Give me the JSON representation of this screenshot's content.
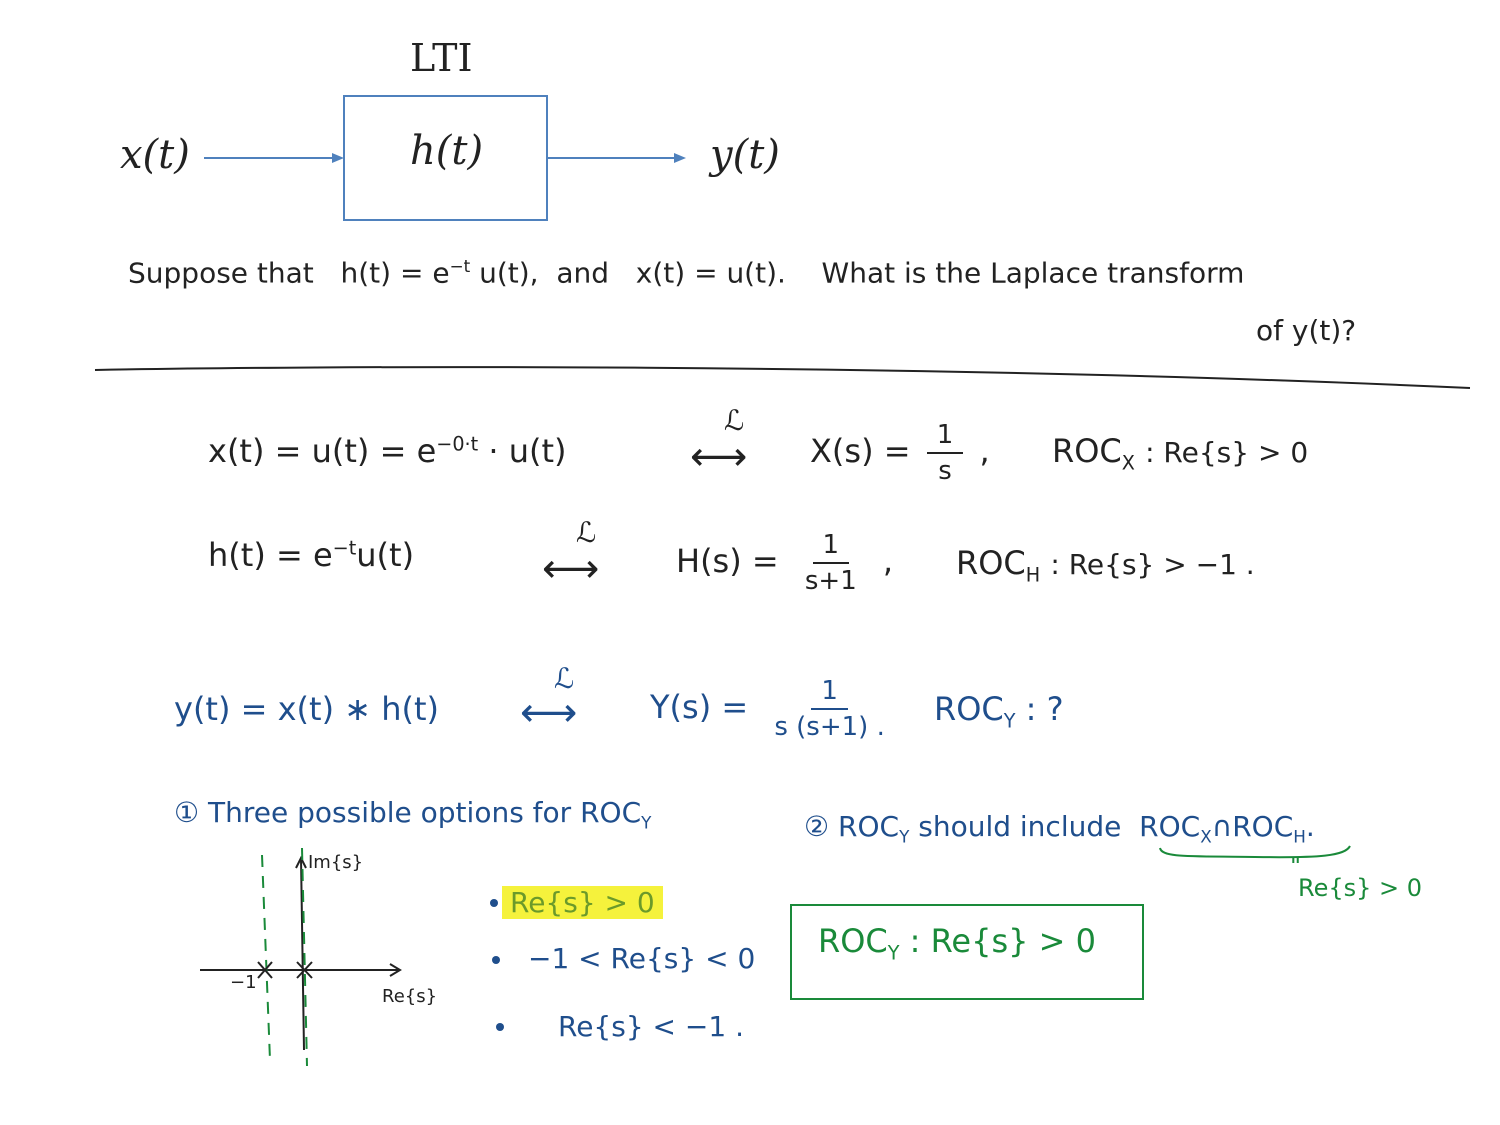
{
  "diagram": {
    "block_title": "LTI",
    "input_label": "x(t)",
    "block_label": "h(t)",
    "output_label": "y(t)"
  },
  "question": {
    "line1": {
      "lead": "Suppose that",
      "h_def": "h(t) = e",
      "h_exp": "−t",
      "h_tail": "u(t),",
      "and": "and",
      "x_def": "x(t) = u(t).",
      "ask": "What is the Laplace transform"
    },
    "line2": "of y(t)?"
  },
  "work": {
    "laplace_symbol": "ℒ",
    "arrow": "⟷",
    "row1": {
      "lhs": "x(t) = u(t) = e",
      "exp": "−0·t",
      "tail": "· u(t)",
      "rhs": "X(s) =",
      "num": "1",
      "den": "s",
      "comma": ",",
      "roc_label": "ROC",
      "roc_sub": "X",
      "roc_cond": ": Re{s} > 0"
    },
    "row2": {
      "lhs": "h(t) = e",
      "exp": "−t",
      "tail": "u(t)",
      "rhs": "H(s) =",
      "num": "1",
      "den": "s+1",
      "comma": ",",
      "roc_label": "ROC",
      "roc_sub": "H",
      "roc_cond": ": Re{s} > −1 ."
    },
    "row3": {
      "lhs": "y(t) = x(t) ∗ h(t)",
      "rhs": "Y(s) =",
      "num": "1",
      "den": "s (s+1) .",
      "roc_label": "ROC",
      "roc_sub": "Y",
      "roc_cond": ": ?"
    }
  },
  "options": {
    "heading_num": "①",
    "heading": "Three possible options for ROC",
    "heading_sub": "Y",
    "axis_imag": "Im{s}",
    "axis_real": "Re{s}",
    "axis_tick": "−1",
    "items": [
      "Re{s} > 0",
      "−1 < Re{s} < 0",
      "Re{s} < −1 ."
    ]
  },
  "rule": {
    "num": "②",
    "text_a": "ROC",
    "text_a_sub": "Y",
    "text_b": "should include",
    "roc_x": "ROC",
    "roc_x_sub": "X",
    "cap": "∩",
    "roc_h": "ROC",
    "roc_h_sub": "H",
    "period": ".",
    "equiv": "\"",
    "result": "Re{s} > 0"
  },
  "answer": {
    "label": "ROC",
    "sub": "Y",
    "cond": ": Re{s} > 0"
  },
  "colors": {
    "diagram_stroke": "#4f81bd",
    "ink": "#222222",
    "blue_ink": "#1f4e8c",
    "green_ink": "#1a8a3a",
    "highlight": "#f5f23c"
  }
}
